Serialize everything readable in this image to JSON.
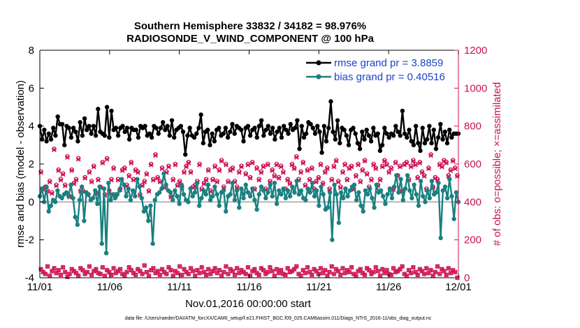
{
  "chart_data": {
    "type": "line",
    "title": "Southern Hemisphere 33832 / 34182 = 98.976%",
    "subtitle": "RADIOSONDE_V_WIND_COMPONENT @ 100 hPa",
    "xlabel": "Nov.01,2016 00:00:00 start",
    "ylabel": "rmse and bias (model - observation)",
    "y2label": "# of obs: o=possible; ×=assimilated",
    "footnote": "data file: /Users/raeder/DAI/ATM_forcXX/CAM6_setup/f.e21.FHIST_BGC.f09_025.CAM6assim.011/Diags_NTrS_2016-11/obs_diag_output.nc",
    "x_tick_labels": [
      "11/01",
      "11/06",
      "11/11",
      "11/16",
      "11/21",
      "11/26",
      "12/01"
    ],
    "x_tick_days": [
      0,
      5,
      10,
      15,
      20,
      25,
      30
    ],
    "xlim_days": [
      0,
      30
    ],
    "ylim": [
      -4,
      8
    ],
    "y_ticks": [
      -4,
      -2,
      0,
      2,
      4,
      6,
      8
    ],
    "y2lim": [
      0,
      1200
    ],
    "y2_ticks": [
      0,
      200,
      400,
      600,
      800,
      1000,
      1200
    ],
    "grid": false,
    "legend_position": "top-right",
    "colors": {
      "rmse": "#000000",
      "bias": "#1a8080",
      "obs": "#cc1155",
      "zero_line": "#b4b4b4",
      "legend_text": "#1a44cc"
    },
    "series": [
      {
        "name": "rmse grand pr = 3.8859",
        "key": "rmse",
        "axis": "left",
        "values": [
          4.0,
          3.3,
          3.8,
          3.2,
          3.6,
          3.3,
          3.9,
          3.5,
          4.5,
          4.1,
          4.1,
          3.0,
          4.0,
          3.9,
          3.4,
          3.9,
          3.7,
          3.2,
          4.2,
          3.5,
          4.4,
          3.8,
          4.0,
          3.6,
          4.0,
          3.5,
          4.9,
          3.7,
          3.6,
          3.5,
          5.0,
          3.4,
          4.8,
          3.8,
          3.9,
          3.5,
          3.9,
          4.0,
          3.7,
          3.9,
          3.3,
          3.9,
          3.8,
          3.8,
          3.4,
          4.0,
          3.9,
          4.0,
          3.5,
          3.6,
          3.4,
          4.0,
          3.9,
          3.6,
          3.9,
          4.2,
          3.8,
          4.0,
          3.5,
          4.3,
          3.4,
          3.8,
          3.9,
          4.0,
          3.7,
          2.5,
          3.5,
          3.9,
          3.5,
          3.4,
          3.6,
          3.9,
          4.6,
          3.1,
          3.7,
          3.8,
          3.0,
          3.6,
          3.2,
          3.8,
          3.9,
          3.5,
          3.6,
          3.9,
          3.4,
          3.7,
          4.1,
          3.6,
          4.0,
          3.9,
          3.8,
          3.2,
          3.9,
          4.0,
          3.5,
          3.8,
          3.9,
          3.4,
          4.0,
          4.3,
          3.5,
          3.8,
          4.0,
          3.6,
          3.9,
          3.3,
          3.7,
          3.9,
          3.4,
          4.0,
          3.8,
          3.6,
          4.1,
          3.8,
          3.9,
          4.3,
          2.8,
          4.0,
          3.4,
          3.6,
          4.2,
          4.1,
          3.9,
          3.6,
          4.0,
          3.7,
          2.6,
          4.0,
          3.2,
          3.9,
          5.3,
          3.7,
          3.3,
          4.3,
          3.1,
          3.9,
          3.8,
          3.5,
          3.0,
          3.8,
          3.9,
          3.6,
          3.1,
          2.8,
          3.7,
          3.3,
          3.8,
          3.5,
          3.2,
          3.9,
          3.5,
          3.6,
          2.7,
          3.0,
          3.9,
          3.6,
          3.4,
          3.6,
          3.5,
          4.0,
          3.7,
          3.5,
          4.8,
          3.6,
          3.4,
          3.8,
          3.2,
          3.0,
          4.0,
          3.1,
          2.7,
          3.9,
          3.1,
          3.3,
          4.0,
          3.1,
          3.8,
          2.8,
          3.4,
          4.1,
          3.3,
          3.7,
          3.1,
          3.8,
          3.4,
          3.6,
          3.6,
          3.6
        ],
        "x_days": null
      },
      {
        "name": "bias grand pr = 0.40516",
        "key": "bias",
        "axis": "left",
        "values": [
          0.3,
          0.7,
          0.0,
          0.8,
          -0.5,
          -0.2,
          0.1,
          0.0,
          0.6,
          0.3,
          0.2,
          0.4,
          0.5,
          0.3,
          0.9,
          0.2,
          -0.8,
          -1.2,
          0.1,
          0.8,
          -1.0,
          0.5,
          0.4,
          0.1,
          0.2,
          0.6,
          -0.1,
          0.8,
          -2.2,
          0.7,
          -2.7,
          1.0,
          0.1,
          0.4,
          0.2,
          0.4,
          0.6,
          1.2,
          0.9,
          0.3,
          0.7,
          0.1,
          0.6,
          0.3,
          1.2,
          0.8,
          0.2,
          -0.5,
          -0.3,
          -1.0,
          -0.2,
          -2.2,
          0.1,
          0.4,
          0.5,
          0.7,
          1.5,
          0.9,
          0.6,
          0.5,
          0.1,
          0.6,
          0.3,
          -0.1,
          0.9,
          0.4,
          0.1,
          0.0,
          0.7,
          0.3,
          0.5,
          1.0,
          -0.2,
          0.2,
          0.6,
          0.4,
          0.9,
          0.1,
          0.3,
          0.8,
          0.4,
          -0.2,
          0.5,
          0.6,
          -0.5,
          0.3,
          0.4,
          1.0,
          0.1,
          0.6,
          -0.3,
          0.7,
          0.2,
          0.9,
          0.5,
          0.3,
          0.7,
          0.1,
          -0.4,
          0.4,
          0.8,
          0.6,
          0.2,
          0.5,
          0.9,
          0.3,
          1.0,
          -0.1,
          0.6,
          0.4,
          0.7,
          0.2,
          0.6,
          0.3,
          0.8,
          0.5,
          1.1,
          0.4,
          0.6,
          0.2,
          0.1,
          0.7,
          0.5,
          1.0,
          0.3,
          0.6,
          -0.2,
          0.8,
          0.4,
          -0.4,
          -0.3,
          0.5,
          -2.0,
          0.9,
          0.4,
          -1.1,
          0.5,
          0.2,
          0.7,
          0.3,
          0.6,
          0.8,
          0.9,
          0.1,
          0.5,
          -0.2,
          -0.5,
          0.6,
          0.4,
          0.7,
          0.2,
          -0.3,
          0.9,
          0.5,
          0.6,
          0.3,
          -0.1,
          0.4,
          0.7,
          0.2,
          0.8,
          1.4,
          0.5,
          1.2,
          0.1,
          0.7,
          1.4,
          0.6,
          0.2,
          0.9,
          0.4,
          -0.2,
          1.1,
          0.3,
          0.0,
          0.6,
          0.2,
          1.1,
          0.4,
          0.5,
          1.0,
          -1.9,
          0.6,
          0.8,
          0.2,
          1.2,
          0.3,
          -0.9,
          0.5,
          0.0
        ],
        "x_days": null
      }
    ],
    "obs_possible": {
      "axis": "right",
      "marker": "o",
      "values": [
        560,
        470,
        480,
        460,
        510,
        450,
        680,
        490,
        570,
        520,
        550,
        490,
        640,
        430,
        570,
        500,
        520,
        630,
        460,
        460,
        530,
        440,
        560,
        510,
        590,
        450,
        520,
        480,
        610,
        440,
        630,
        460,
        520,
        580,
        440,
        520,
        470,
        570,
        580,
        490,
        540,
        610,
        520,
        570,
        560,
        440,
        490,
        510,
        550,
        460,
        600,
        520,
        650,
        530,
        510,
        580,
        480,
        560,
        590,
        430,
        520,
        600,
        490,
        510,
        480,
        560,
        590,
        610,
        560,
        480,
        490,
        510,
        600,
        470,
        500,
        520,
        570,
        460,
        520,
        590,
        510,
        570,
        620,
        480,
        600,
        510,
        570,
        580,
        510,
        480,
        560,
        590,
        450,
        550,
        600,
        530,
        610,
        470,
        580,
        520,
        560,
        590,
        470,
        600,
        510,
        570,
        540,
        600,
        530,
        590,
        560,
        470,
        520,
        500,
        600,
        580,
        640,
        520,
        560,
        610,
        490,
        570,
        520,
        580,
        470,
        510,
        530,
        600,
        500,
        560,
        580,
        470,
        520,
        590,
        620,
        510,
        480,
        560,
        600,
        520,
        580,
        590,
        470,
        540,
        600,
        510,
        570,
        620,
        550,
        480,
        520,
        600,
        580,
        490,
        520,
        590,
        620,
        600,
        560,
        580,
        470,
        610,
        540,
        590,
        460,
        600,
        610,
        520,
        590,
        620,
        600,
        530,
        610,
        560,
        540,
        470,
        580,
        650,
        480,
        530,
        520,
        600,
        590,
        620,
        610,
        540,
        570,
        620,
        580,
        540
      ]
    },
    "obs_assimilated": {
      "axis": "right",
      "marker": "x",
      "values": [
        555,
        465,
        475,
        455,
        505,
        445,
        675,
        485,
        565,
        515,
        545,
        485,
        635,
        425,
        565,
        495,
        515,
        625,
        455,
        455,
        525,
        435,
        555,
        505,
        585,
        445,
        515,
        475,
        605,
        435,
        625,
        455,
        515,
        575,
        435,
        515,
        465,
        565,
        575,
        485,
        535,
        605,
        515,
        565,
        555,
        435,
        485,
        505,
        545,
        455,
        595,
        515,
        645,
        525,
        505,
        575,
        475,
        555,
        585,
        425,
        515,
        595,
        485,
        505,
        475,
        555,
        585,
        605,
        555,
        475,
        485,
        505,
        595,
        465,
        495,
        515,
        565,
        455,
        515,
        585,
        505,
        565,
        615,
        475,
        595,
        505,
        565,
        575,
        505,
        475,
        555,
        585,
        445,
        545,
        595,
        525,
        605,
        465,
        575,
        515,
        555,
        585,
        465,
        595,
        505,
        565,
        535,
        595,
        525,
        585,
        555,
        465,
        515,
        495,
        595,
        575,
        635,
        515,
        555,
        605,
        485,
        565,
        515,
        575,
        465,
        505,
        525,
        595,
        495,
        555,
        575,
        465,
        515,
        585,
        615,
        505,
        475,
        555,
        595,
        515,
        575,
        585,
        465,
        535,
        595,
        505,
        565,
        615,
        545,
        475,
        515,
        595,
        575,
        485,
        515,
        585,
        615,
        595,
        555,
        575,
        465,
        605,
        535,
        585,
        455,
        595,
        605,
        515,
        585,
        615,
        595,
        525,
        605,
        555,
        535,
        465,
        575,
        645,
        475,
        525,
        515,
        595,
        585,
        615,
        605,
        535,
        565,
        615,
        575,
        535
      ]
    },
    "obs_low_possible": {
      "axis": "right",
      "marker": "o",
      "values": [
        45,
        30,
        20,
        60,
        10,
        35,
        50,
        25,
        40,
        15,
        55,
        30,
        5,
        20,
        45,
        35,
        25,
        10,
        50,
        40,
        20,
        30,
        60,
        15,
        35,
        45,
        25,
        20,
        55,
        10,
        40,
        30,
        15,
        50,
        25,
        35,
        45,
        20,
        10,
        30,
        55,
        40,
        25,
        15,
        45,
        35,
        20,
        65,
        30,
        10,
        40,
        50,
        25,
        35,
        15,
        45,
        30,
        20,
        55,
        40,
        10,
        35,
        25,
        60,
        15,
        45,
        30,
        20,
        50,
        35,
        10,
        40,
        25,
        55,
        30,
        15,
        45,
        20,
        35,
        50,
        25,
        40,
        10,
        30,
        60,
        20,
        45,
        35,
        15,
        50,
        25,
        40,
        30,
        20,
        55,
        10,
        35,
        45,
        25,
        15,
        50,
        40,
        20,
        30,
        55,
        35,
        10,
        45,
        25,
        40,
        20,
        15,
        50,
        30,
        35,
        45,
        60,
        20,
        10,
        40,
        25,
        55,
        30,
        15,
        45,
        35,
        20,
        50,
        25,
        40,
        10,
        30,
        60,
        20,
        45,
        35,
        15,
        50,
        25,
        40,
        30,
        55,
        20,
        10,
        35,
        45,
        25,
        15,
        50,
        40,
        20,
        30,
        55,
        35,
        10,
        45,
        25,
        40,
        20,
        15,
        50,
        30,
        35,
        45,
        60,
        20,
        10,
        40,
        25,
        55,
        30,
        15,
        45,
        35,
        20,
        50,
        25,
        40,
        10,
        30,
        60,
        20,
        45,
        35,
        15,
        50,
        25,
        40,
        30,
        0
      ]
    }
  }
}
